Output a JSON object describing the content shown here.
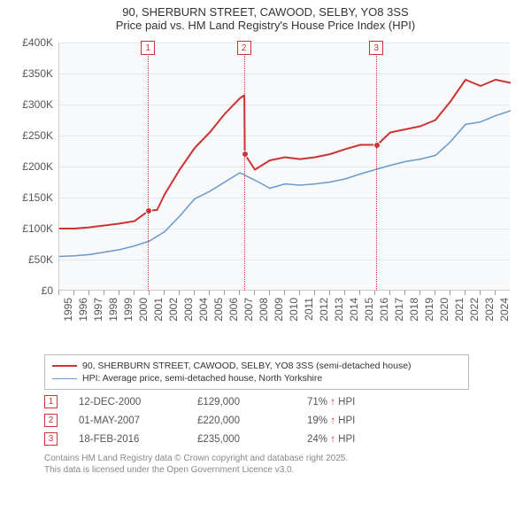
{
  "title_line1": "90, SHERBURN STREET, CAWOOD, SELBY, YO8 3SS",
  "title_line2": "Price paid vs. HM Land Registry's House Price Index (HPI)",
  "chart": {
    "type": "line",
    "background_color": "#f8f9fb",
    "grid_color": "#e5e7eb",
    "axis_color": "#cccccc",
    "text_color": "#555555",
    "ylim": [
      0,
      400000
    ],
    "ytick_step": 50000,
    "y_ticks": [
      {
        "v": 0,
        "label": "£0"
      },
      {
        "v": 50000,
        "label": "£50K"
      },
      {
        "v": 100000,
        "label": "£100K"
      },
      {
        "v": 150000,
        "label": "£150K"
      },
      {
        "v": 200000,
        "label": "£200K"
      },
      {
        "v": 250000,
        "label": "£250K"
      },
      {
        "v": 300000,
        "label": "£300K"
      },
      {
        "v": 350000,
        "label": "£350K"
      },
      {
        "v": 400000,
        "label": "£400K"
      }
    ],
    "xlim": [
      1995,
      2025
    ],
    "x_ticks": [
      1995,
      1996,
      1997,
      1998,
      1999,
      2000,
      2001,
      2002,
      2003,
      2004,
      2005,
      2006,
      2007,
      2008,
      2009,
      2010,
      2011,
      2012,
      2013,
      2014,
      2015,
      2016,
      2017,
      2018,
      2019,
      2020,
      2021,
      2022,
      2023,
      2024
    ],
    "series": [
      {
        "name": "property",
        "color": "#cc3333",
        "width": 2,
        "points": [
          [
            1995,
            100000
          ],
          [
            1996,
            100000
          ],
          [
            1997,
            102000
          ],
          [
            1998,
            105000
          ],
          [
            1999,
            108000
          ],
          [
            2000,
            112000
          ],
          [
            2000.95,
            129000
          ],
          [
            2001.5,
            130000
          ],
          [
            2002,
            155000
          ],
          [
            2003,
            195000
          ],
          [
            2004,
            230000
          ],
          [
            2005,
            255000
          ],
          [
            2006,
            285000
          ],
          [
            2007,
            310000
          ],
          [
            2007.3,
            315000
          ],
          [
            2007.33,
            220000
          ],
          [
            2008,
            195000
          ],
          [
            2009,
            210000
          ],
          [
            2010,
            215000
          ],
          [
            2011,
            212000
          ],
          [
            2012,
            215000
          ],
          [
            2013,
            220000
          ],
          [
            2014,
            228000
          ],
          [
            2015,
            235000
          ],
          [
            2016.13,
            235000
          ],
          [
            2017,
            255000
          ],
          [
            2018,
            260000
          ],
          [
            2019,
            265000
          ],
          [
            2020,
            275000
          ],
          [
            2021,
            305000
          ],
          [
            2022,
            340000
          ],
          [
            2023,
            330000
          ],
          [
            2024,
            340000
          ],
          [
            2025,
            335000
          ]
        ]
      },
      {
        "name": "hpi",
        "color": "#6699cc",
        "width": 1.5,
        "points": [
          [
            1995,
            55000
          ],
          [
            1996,
            56000
          ],
          [
            1997,
            58000
          ],
          [
            1998,
            62000
          ],
          [
            1999,
            66000
          ],
          [
            2000,
            72000
          ],
          [
            2001,
            80000
          ],
          [
            2002,
            95000
          ],
          [
            2003,
            120000
          ],
          [
            2004,
            148000
          ],
          [
            2005,
            160000
          ],
          [
            2006,
            175000
          ],
          [
            2007,
            190000
          ],
          [
            2008,
            178000
          ],
          [
            2009,
            165000
          ],
          [
            2010,
            172000
          ],
          [
            2011,
            170000
          ],
          [
            2012,
            172000
          ],
          [
            2013,
            175000
          ],
          [
            2014,
            180000
          ],
          [
            2015,
            188000
          ],
          [
            2016,
            195000
          ],
          [
            2017,
            202000
          ],
          [
            2018,
            208000
          ],
          [
            2019,
            212000
          ],
          [
            2020,
            218000
          ],
          [
            2021,
            240000
          ],
          [
            2022,
            268000
          ],
          [
            2023,
            272000
          ],
          [
            2024,
            282000
          ],
          [
            2025,
            290000
          ]
        ]
      }
    ],
    "markers": [
      {
        "n": "1",
        "year": 2000.95,
        "value": 129000
      },
      {
        "n": "2",
        "year": 2007.33,
        "value": 220000
      },
      {
        "n": "3",
        "year": 2016.13,
        "value": 235000
      }
    ]
  },
  "legend": {
    "items": [
      {
        "color": "#cc3333",
        "width": 2,
        "label": "90, SHERBURN STREET, CAWOOD, SELBY, YO8 3SS (semi-detached house)"
      },
      {
        "color": "#6699cc",
        "width": 1.5,
        "label": "HPI: Average price, semi-detached house, North Yorkshire"
      }
    ]
  },
  "events": [
    {
      "n": "1",
      "date": "12-DEC-2000",
      "price": "£129,000",
      "hpi": "71% ↑ HPI"
    },
    {
      "n": "2",
      "date": "01-MAY-2007",
      "price": "£220,000",
      "hpi": "19% ↑ HPI"
    },
    {
      "n": "3",
      "date": "18-FEB-2016",
      "price": "£235,000",
      "hpi": "24% ↑ HPI"
    }
  ],
  "footer_line1": "Contains HM Land Registry data © Crown copyright and database right 2025.",
  "footer_line2": "This data is licensed under the Open Government Licence v3.0."
}
